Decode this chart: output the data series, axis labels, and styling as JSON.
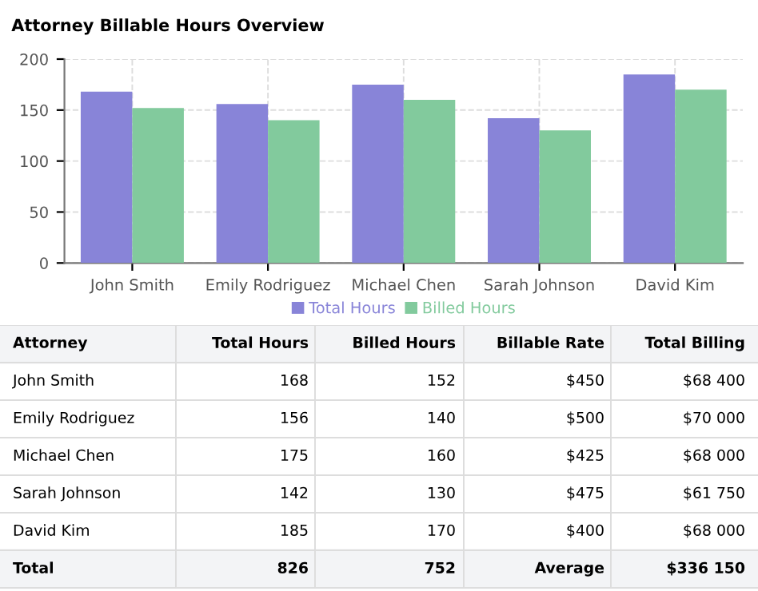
{
  "chart_data": [
    {
      "type": "bar",
      "title": "Attorney Billable Hours Overview",
      "categories": [
        "John Smith",
        "Emily Rodriguez",
        "Michael Chen",
        "Sarah Johnson",
        "David Kim"
      ],
      "series": [
        {
          "name": "Total Hours",
          "color": "#8884d8",
          "values": [
            168,
            156,
            175,
            142,
            185
          ]
        },
        {
          "name": "Billed Hours",
          "color": "#82ca9d",
          "values": [
            152,
            140,
            160,
            130,
            170
          ]
        }
      ],
      "ylim": [
        0,
        200
      ],
      "yticks": [
        0,
        50,
        100,
        150,
        200
      ],
      "grid": true,
      "legend": "bottom"
    },
    {
      "type": "other",
      "annotations": [
        "Attorney",
        "Total Hours",
        "Billed Hours",
        "Billable Rate",
        "Total Billing",
        "John Smith",
        "168",
        "152",
        "$450",
        "$68 400",
        "Emily Rodriguez",
        "156",
        "140",
        "$500",
        "$70 000",
        "Michael Chen",
        "175",
        "160",
        "$425",
        "$68 000",
        "Sarah Johnson",
        "142",
        "130",
        "$475",
        "$61 750",
        "David Kim",
        "185",
        "170",
        "$400",
        "$68 000",
        "Total",
        "826",
        "752",
        "Average",
        "$336 150"
      ]
    }
  ]
}
